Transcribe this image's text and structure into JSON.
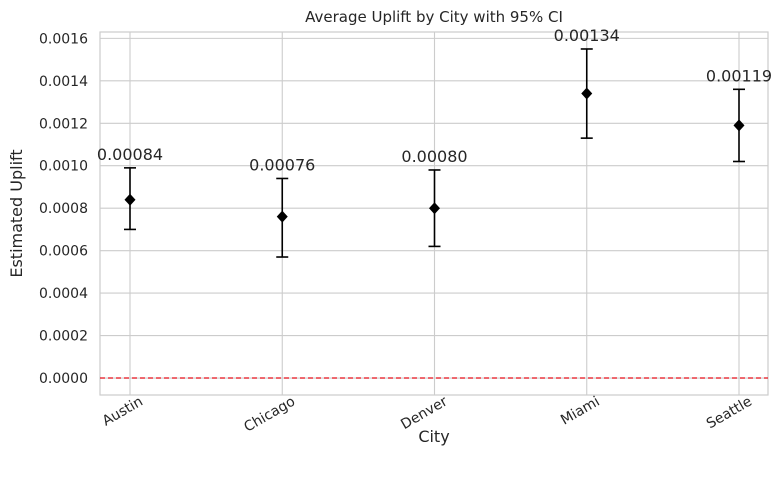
{
  "chart_data": {
    "type": "errorbar",
    "title": "Average Uplift by City with 95% CI",
    "xlabel": "City",
    "ylabel": "Estimated Uplift",
    "categories": [
      "Austin",
      "Chicago",
      "Denver",
      "Miami",
      "Seattle"
    ],
    "values": [
      0.00084,
      0.00076,
      0.0008,
      0.00134,
      0.00119
    ],
    "ci_lower": [
      0.0007,
      0.00057,
      0.00062,
      0.00113,
      0.00102
    ],
    "ci_upper": [
      0.00099,
      0.00094,
      0.00098,
      0.00155,
      0.00136
    ],
    "data_labels": [
      "0.00084",
      "0.00076",
      "0.00080",
      "0.00134",
      "0.00119"
    ],
    "y_ticks": [
      0.0,
      0.0002,
      0.0004,
      0.0006,
      0.0008,
      0.001,
      0.0012,
      0.0014,
      0.0016
    ],
    "y_tick_labels": [
      "0.0000",
      "0.0002",
      "0.0004",
      "0.0006",
      "0.0008",
      "0.0010",
      "0.0012",
      "0.0014",
      "0.0016"
    ],
    "ylim": [
      -8e-05,
      0.00163
    ],
    "reference_line": {
      "y": 0,
      "style": "dashed",
      "color": "#e8121c"
    },
    "grid": true,
    "marker": "diamond",
    "marker_color": "#000000",
    "tick_rotation_deg": -30
  }
}
